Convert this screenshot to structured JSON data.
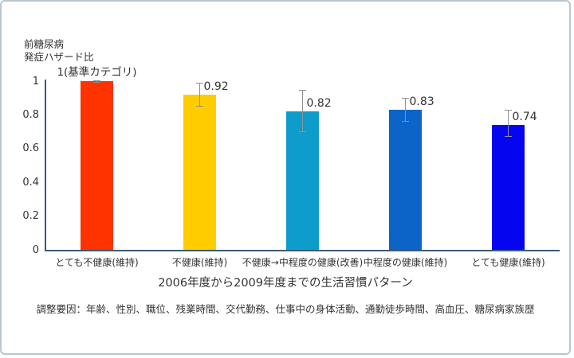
{
  "frame": {
    "background": "#ffffff",
    "border_color": "#b9c6d1"
  },
  "chart_data": {
    "type": "bar",
    "ylabel_lines": [
      "前糖尿病",
      "発症ハザード比"
    ],
    "xlabel": "2006年度から2009年度までの生活習慣パターン",
    "footnote": "調整要因：年齢、性別、職位、残業時間、交代勤務、仕事中の身体活動、通勤徒歩時間、高血圧、糖尿病家族歴",
    "ylim": [
      0,
      1
    ],
    "grid": false,
    "legend": "none",
    "axis_color": "#3d5a74",
    "error_bar_color": "#8f8f8f",
    "yticks": [
      {
        "value": 0,
        "label": "0"
      },
      {
        "value": 0.2,
        "label": "0.2"
      },
      {
        "value": 0.4,
        "label": "0.4"
      },
      {
        "value": 0.6,
        "label": "0.6"
      },
      {
        "value": 0.8,
        "label": "0.8"
      },
      {
        "value": 1,
        "label": "1"
      }
    ],
    "bars": [
      {
        "category": "とても不健康(維持)",
        "value": 1.0,
        "value_label": "1(基準カテゴリ)",
        "label_position": "top-center",
        "color": "#ff3300",
        "error_upper": 1.005,
        "error_lower": 0.99
      },
      {
        "category": "不健康(維持)",
        "value": 0.92,
        "value_label": "0.92",
        "label_position": "right",
        "color": "#ffcc00",
        "error_upper": 0.99,
        "error_lower": 0.85
      },
      {
        "category": "不健康→中程度の健康(改善)",
        "value": 0.82,
        "value_label": "0.82",
        "label_position": "right",
        "color": "#0d9ccb",
        "error_upper": 0.95,
        "error_lower": 0.7
      },
      {
        "category": "中程度の健康(維持)",
        "value": 0.83,
        "value_label": "0.83",
        "label_position": "right",
        "color": "#0d64c8",
        "error_upper": 0.9,
        "error_lower": 0.76
      },
      {
        "category": "とても健康(維持)",
        "value": 0.74,
        "value_label": "0.74",
        "label_position": "right",
        "color": "#0505f0",
        "error_upper": 0.83,
        "error_lower": 0.67
      }
    ]
  }
}
